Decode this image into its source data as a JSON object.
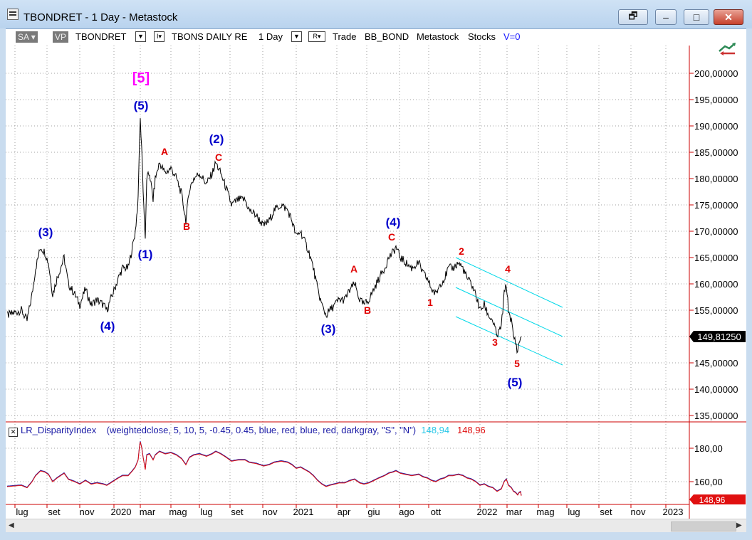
{
  "window": {
    "title": "TBONDRET - 1 Day - Metastock",
    "buttons": [
      "restore-window",
      "minimize",
      "maximize",
      "close"
    ]
  },
  "toolbar": {
    "sa": "SA",
    "vp": "VP",
    "symbol": "TBONDRET",
    "name": "TBONS DAILY RE",
    "period": "1 Day",
    "r_label": "R",
    "trade": "Trade",
    "bb": "BB_BOND",
    "metastock": "Metastock",
    "stocks": "Stocks",
    "v0": "V=0"
  },
  "price_axis": {
    "ticks": [
      "200,00000",
      "195,00000",
      "190,00000",
      "185,00000",
      "180,00000",
      "175,00000",
      "170,00000",
      "165,00000",
      "160,00000",
      "155,00000",
      "150,00000",
      "145,00000",
      "140,00000",
      "135,00000"
    ],
    "last_price": "149,81250"
  },
  "indicator": {
    "name": "LR_DisparityIndex",
    "params": "(weightedclose, 5, 10, 5, -0.45, 0.45, blue, red, blue, red, darkgray, \"S\", \"N\")",
    "value1": "148,94",
    "value2": "148,96",
    "ticks": [
      "180,00",
      "160,00"
    ],
    "last_value": "148,96"
  },
  "time_axis": {
    "labels": [
      "lug",
      "set",
      "nov",
      "2020",
      "mar",
      "mag",
      "lug",
      "set",
      "nov",
      "2021",
      "apr",
      "giu",
      "ago",
      "ott",
      "2022",
      "mar",
      "mag",
      "lug",
      "set",
      "nov",
      "2023"
    ]
  },
  "wave_labels": [
    {
      "text": "[5]",
      "color": "#ff00ff"
    },
    {
      "text": "(5)",
      "color": "#0000cc"
    },
    {
      "text": "(3)",
      "color": "#0000cc"
    },
    {
      "text": "(4)",
      "color": "#0000cc"
    },
    {
      "text": "(1)",
      "color": "#0000cc"
    },
    {
      "text": "A",
      "color": "#e00000"
    },
    {
      "text": "B",
      "color": "#e00000"
    },
    {
      "text": "(2)",
      "color": "#0000cc"
    },
    {
      "text": "C",
      "color": "#e00000"
    },
    {
      "text": "(3)",
      "color": "#0000cc"
    },
    {
      "text": "A",
      "color": "#e00000"
    },
    {
      "text": "B",
      "color": "#e00000"
    },
    {
      "text": "(4)",
      "color": "#0000cc"
    },
    {
      "text": "C",
      "color": "#e00000"
    },
    {
      "text": "1",
      "color": "#e00000"
    },
    {
      "text": "2",
      "color": "#e00000"
    },
    {
      "text": "3",
      "color": "#e00000"
    },
    {
      "text": "4",
      "color": "#e00000"
    },
    {
      "text": "5",
      "color": "#e00000"
    },
    {
      "text": "(5)",
      "color": "#0000cc"
    }
  ],
  "colors": {
    "price_line": "#000000",
    "channel": "#00d8e8",
    "indicator_blue": "#1a1aa6",
    "indicator_red": "#e01010",
    "grid": "#9a9a9a",
    "axis_red": "#cc0000"
  }
}
